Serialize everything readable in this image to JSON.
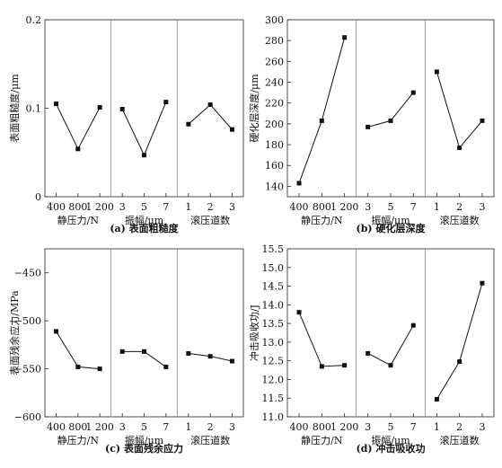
{
  "chart_data": [
    {
      "id": "a",
      "type": "line",
      "caption": "(a) 表面粗糙度",
      "ylabel": "表面粗糙度/μm",
      "ylim": [
        0,
        0.2
      ],
      "yticks": [
        0,
        0.1,
        0.2
      ],
      "ytick_labels": [
        "0",
        "0.1",
        "0.2"
      ],
      "groups": [
        {
          "name": "静压力/N",
          "x": [
            "400",
            "800",
            "1 200"
          ],
          "values": [
            0.105,
            0.054,
            0.101
          ]
        },
        {
          "name": "振幅/μm",
          "x": [
            "3",
            "5",
            "7"
          ],
          "values": [
            0.099,
            0.047,
            0.107
          ]
        },
        {
          "name": "滚压道数",
          "x": [
            "1",
            "2",
            "3"
          ],
          "values": [
            0.082,
            0.104,
            0.076
          ]
        }
      ]
    },
    {
      "id": "b",
      "type": "line",
      "caption": "(b) 硬化层深度",
      "ylabel": "硬化层深度/μm",
      "ylim": [
        130,
        300
      ],
      "yticks": [
        140,
        160,
        180,
        200,
        220,
        240,
        260,
        280,
        300
      ],
      "ytick_labels": [
        "140",
        "160",
        "180",
        "200",
        "220",
        "240",
        "260",
        "280",
        "300"
      ],
      "groups": [
        {
          "name": "静压力/N",
          "x": [
            "400",
            "800",
            "1 200"
          ],
          "values": [
            143,
            203,
            283
          ]
        },
        {
          "name": "振幅/μm",
          "x": [
            "3",
            "5",
            "7"
          ],
          "values": [
            197,
            203,
            230
          ]
        },
        {
          "name": "滚压道数",
          "x": [
            "1",
            "2",
            "3"
          ],
          "values": [
            250,
            177,
            203
          ]
        }
      ]
    },
    {
      "id": "c",
      "type": "line",
      "caption": "(c) 表面残余应力",
      "ylabel": "表面残余应力/MPa",
      "ylim": [
        -600,
        -425
      ],
      "yticks": [
        -600,
        -550,
        -500,
        -450
      ],
      "ytick_labels": [
        "−600",
        "−550",
        "−500",
        "−450"
      ],
      "groups": [
        {
          "name": "静压力/N",
          "x": [
            "400",
            "800",
            "1 200"
          ],
          "values": [
            -511,
            -548,
            -550
          ]
        },
        {
          "name": "振幅/μm",
          "x": [
            "3",
            "5",
            "7"
          ],
          "values": [
            -532,
            -532,
            -548
          ]
        },
        {
          "name": "滚压道数",
          "x": [
            "1",
            "2",
            "3"
          ],
          "values": [
            -534,
            -537,
            -542
          ]
        }
      ]
    },
    {
      "id": "d",
      "type": "line",
      "caption": "(d) 冲击吸收功",
      "ylabel": "冲击吸收功/J",
      "ylim": [
        11.0,
        15.5
      ],
      "yticks": [
        11.0,
        11.5,
        12.0,
        12.5,
        13.0,
        13.5,
        14.0,
        14.5,
        15.0,
        15.5
      ],
      "ytick_labels": [
        "11.0",
        "11.5",
        "12.0",
        "12.5",
        "13.0",
        "13.5",
        "14.0",
        "14.5",
        "15.0",
        "15.5"
      ],
      "groups": [
        {
          "name": "静压力/N",
          "x": [
            "400",
            "800",
            "1 200"
          ],
          "values": [
            13.8,
            12.35,
            12.38
          ]
        },
        {
          "name": "振幅/μm",
          "x": [
            "3",
            "5",
            "7"
          ],
          "values": [
            12.7,
            12.38,
            13.45
          ]
        },
        {
          "name": "滚压道数",
          "x": [
            "1",
            "2",
            "3"
          ],
          "values": [
            11.47,
            12.48,
            14.58
          ]
        }
      ]
    }
  ]
}
